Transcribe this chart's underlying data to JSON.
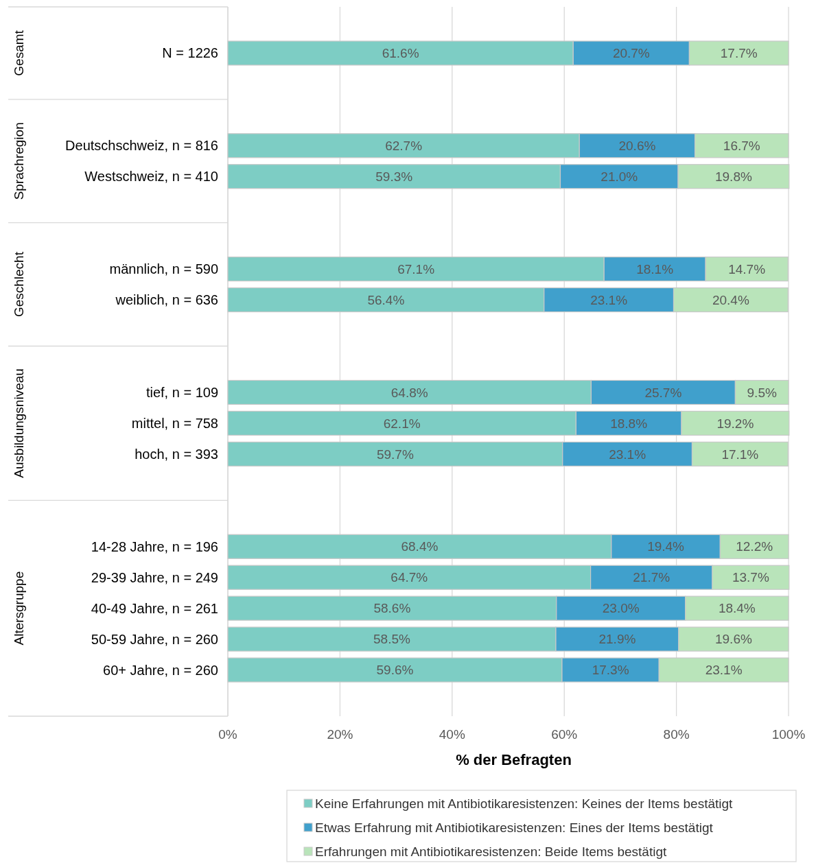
{
  "chart_data": {
    "type": "bar",
    "orientation": "horizontal",
    "stacked": true,
    "categories": [
      "N = 1226",
      null,
      null,
      "Deutschschweiz, n = 816",
      "Westschweiz, n = 410",
      null,
      null,
      "männlich, n = 590",
      "weiblich, n = 636",
      null,
      null,
      "tief, n = 109",
      "mittel, n = 758",
      "hoch, n = 393",
      null,
      null,
      "14-28 Jahre, n = 196",
      "29-39 Jahre, n = 249",
      "40-49 Jahre, n = 261",
      "50-59 Jahre, n = 260",
      "60+ Jahre, n = 260"
    ],
    "series": [
      {
        "name": "Keine Erfahrungen mit Antibiotikaresistenzen: Keines der Items bestätigt",
        "color": "#7dcdc4",
        "values": [
          61.6,
          null,
          null,
          62.7,
          59.3,
          null,
          null,
          67.1,
          56.4,
          null,
          null,
          64.8,
          62.1,
          59.7,
          null,
          null,
          68.4,
          64.7,
          58.6,
          58.5,
          59.6
        ],
        "value_labels": [
          "61.6%",
          null,
          null,
          "62.7%",
          "59.3%",
          null,
          null,
          "67.1%",
          "56.4%",
          null,
          null,
          "64.8%",
          "62.1%",
          "59.7%",
          null,
          null,
          "68.4%",
          "64.7%",
          "58.6%",
          "58.5%",
          "59.6%"
        ]
      },
      {
        "name": "Etwas Erfahrung mit Antibiotikaresistenzen: Eines der Items bestätigt",
        "color": "#40a0cc",
        "values": [
          20.7,
          null,
          null,
          20.6,
          21.0,
          null,
          null,
          18.1,
          23.1,
          null,
          null,
          25.7,
          18.8,
          23.1,
          null,
          null,
          19.4,
          21.7,
          23.0,
          21.9,
          17.3
        ],
        "value_labels": [
          "20.7%",
          null,
          null,
          "20.6%",
          "21.0%",
          null,
          null,
          "18.1%",
          "23.1%",
          null,
          null,
          "25.7%",
          "18.8%",
          "23.1%",
          null,
          null,
          "19.4%",
          "21.7%",
          "23.0%",
          "21.9%",
          "17.3%"
        ]
      },
      {
        "name": "Erfahrungen mit Antibiotikaresistenzen: Beide Items bestätigt",
        "color": "#b9e4ba",
        "values": [
          17.7,
          null,
          null,
          16.7,
          19.8,
          null,
          null,
          14.7,
          20.4,
          null,
          null,
          9.5,
          19.2,
          17.1,
          null,
          null,
          12.2,
          13.7,
          18.4,
          19.6,
          23.1
        ],
        "value_labels": [
          "17.7%",
          null,
          null,
          "16.7%",
          "19.8%",
          null,
          null,
          "14.7%",
          "20.4%",
          null,
          null,
          "9.5%",
          "19.2%",
          "17.1%",
          null,
          null,
          "12.2%",
          "13.7%",
          "18.4%",
          "19.6%",
          "23.1%"
        ]
      }
    ],
    "annotations": [
      "Gesamt",
      "Sprachregion",
      "Geschlecht",
      "Ausbildungsniveau",
      "Altersgruppe"
    ],
    "xlabel": "% der Befragten",
    "xlim": [
      0,
      100
    ],
    "xticks": [
      {
        "value": 0,
        "label": "0%"
      },
      {
        "value": 20,
        "label": "20%"
      },
      {
        "value": 40,
        "label": "40%"
      },
      {
        "value": 60,
        "label": "60%"
      },
      {
        "value": 80,
        "label": "80%"
      },
      {
        "value": 100,
        "label": "100%"
      }
    ],
    "grid": "x",
    "legend": "bottom"
  }
}
